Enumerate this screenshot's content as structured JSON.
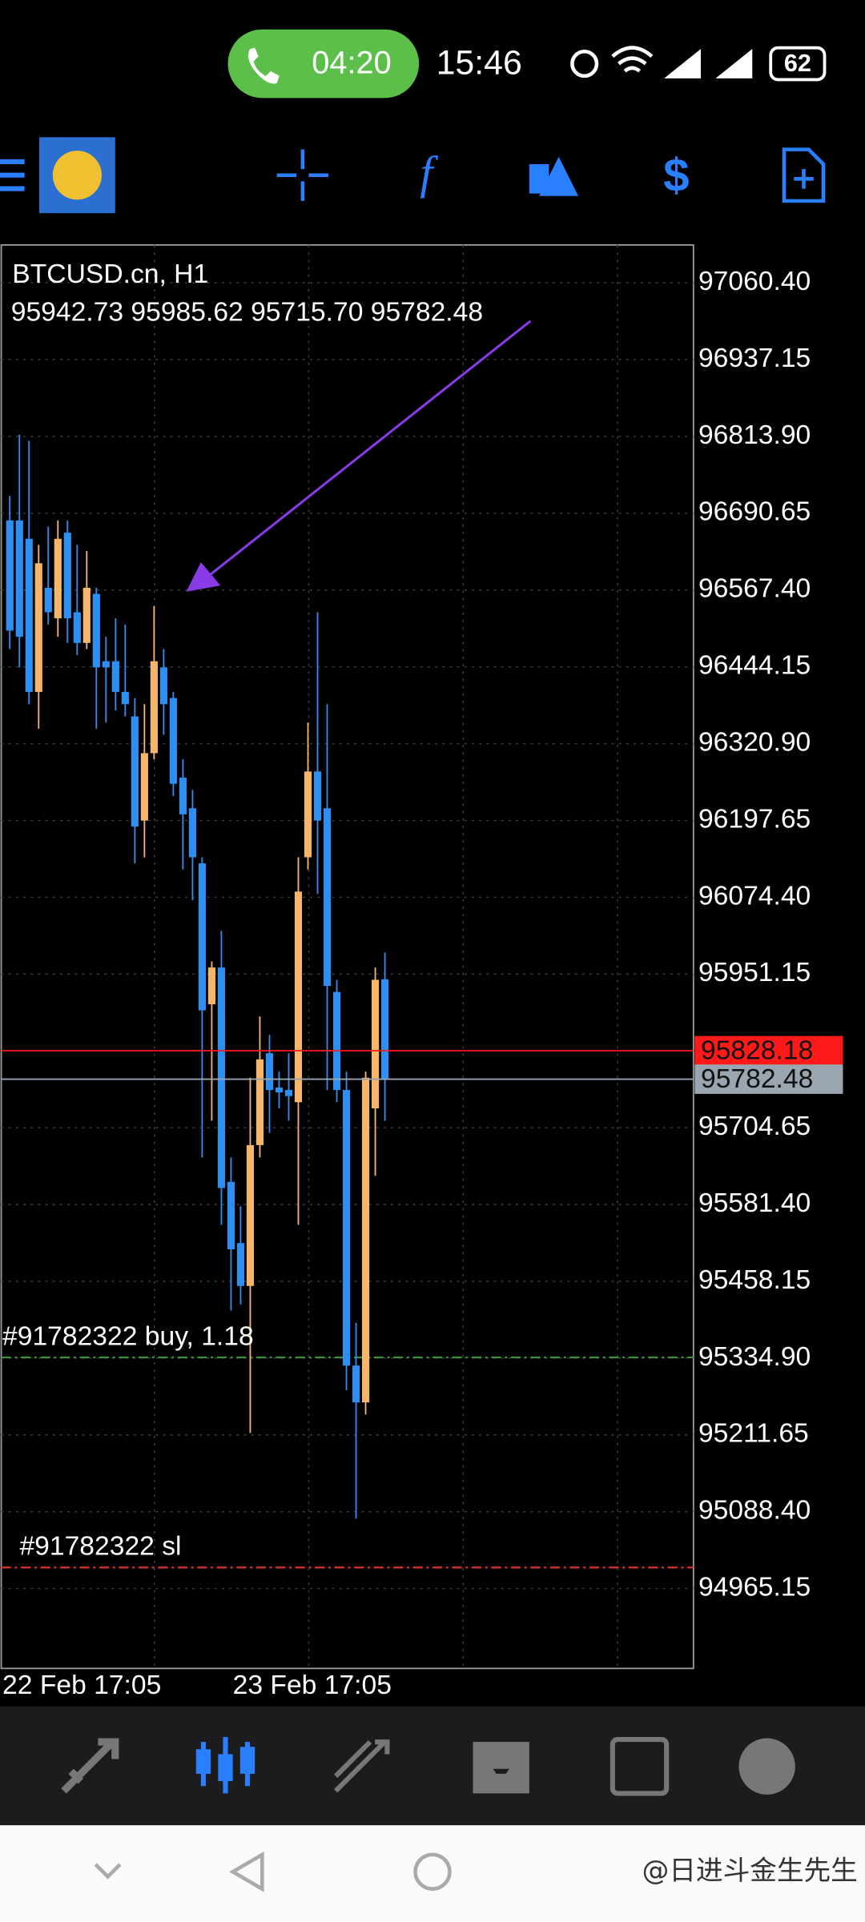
{
  "status": {
    "call_timer": "04:20",
    "time": "15:46",
    "battery": "62"
  },
  "chart_data": {
    "type": "candlestick",
    "title": "BTCUSD.cn, H1",
    "quote": "95942.73 95985.62 95715.70 95782.48",
    "bull_color": "#f5b56a",
    "bear_color": "#2f8ff0",
    "grid": true,
    "ylim": [
      94837,
      97121
    ],
    "yticks": [
      {
        "value": 97060.4,
        "label": "97060.40"
      },
      96937.15,
      {
        "value": 96813.9,
        "label": "96813.90"
      },
      96690.65,
      {
        "value": 96567.4,
        "label": "96567.40"
      },
      96444.15,
      {
        "value": 96320.9,
        "label": "96320.90"
      },
      96197.65,
      {
        "value": 96074.4,
        "label": "96074.40"
      },
      95951.15,
      95704.65,
      {
        "value": 95581.4,
        "label": "95581.40"
      },
      95458.15,
      {
        "value": 95334.9,
        "label": "95334.90"
      },
      95211.65,
      {
        "value": 95088.4,
        "label": "95088.40"
      },
      94965.15
    ],
    "xtick_labels": [
      "22 Feb 17:05",
      "23 Feb 17:05"
    ],
    "open": [
      96679.1,
      96679.1,
      96649.6,
      96403.9,
      96571.0,
      96521.9,
      96659.4,
      96531.7,
      96482.5,
      96561.2,
      96453.1,
      96453.1,
      96403.9,
      96364.6,
      96197.5,
      96305.6,
      96443.2,
      96394.1,
      96266.3,
      96217.2,
      96128.8,
      95902.7,
      95961.7,
      95617.7,
      95519.5,
      95450.7,
      95676.7,
      95824.1,
      95769.1,
      95765.1,
      95745.5,
      96138.6,
      96276.2,
      96217.2,
      95922.4,
      95765.1,
      95322.9,
      95263.9,
      95735.7,
      95942.73
    ],
    "high": [
      96718.4,
      96816.7,
      96806.9,
      96639.8,
      96669.3,
      96679.1,
      96679.1,
      96639.8,
      96630.0,
      96571.0,
      96492.4,
      96521.9,
      96512.0,
      96394.1,
      96384.3,
      96541.5,
      96472.7,
      96403.9,
      96295.8,
      96246.7,
      96138.6,
      95971.5,
      96020.7,
      95657.0,
      95578.4,
      95784.8,
      95883.1,
      95853.6,
      95794.6,
      95824.1,
      96138.6,
      96354.8,
      96531.7,
      96384.3,
      95942.0,
      95794.6,
      95391.7,
      95794.6,
      95961.7,
      95985.62
    ],
    "low": [
      96472.7,
      96443.2,
      96384.3,
      96345.0,
      96512.0,
      96492.4,
      96482.5,
      96462.9,
      96472.7,
      96345.0,
      96354.8,
      96374.4,
      96364.6,
      96128.8,
      96138.6,
      96295.8,
      96335.1,
      96236.9,
      96118.9,
      96069.8,
      95657.0,
      95716.0,
      95548.9,
      95411.3,
      95421.2,
      95214.8,
      95657.0,
      95696.3,
      95735.7,
      95716.0,
      95548.9,
      96118.9,
      96079.6,
      95765.1,
      95745.5,
      95283.6,
      95077.2,
      95244.3,
      95627.5,
      95715.7
    ],
    "close": [
      96502.2,
      96492.4,
      96403.9,
      96610.3,
      96531.7,
      96649.6,
      96521.9,
      96482.5,
      96571.0,
      96443.2,
      96443.2,
      96403.9,
      96384.3,
      96187.7,
      96305.6,
      96453.1,
      96384.3,
      96256.5,
      96207.4,
      96138.6,
      95892.9,
      95961.7,
      95607.9,
      95509.6,
      95450.7,
      95676.7,
      95814.3,
      95765.1,
      95761.2,
      95755.3,
      96083.5,
      96276.2,
      96197.5,
      95932.2,
      95765.1,
      95322.9,
      95263.9,
      95784.8,
      95942.0,
      95782.48
    ],
    "price_lines": [
      {
        "value": 95828.18,
        "color": "#ff1a1a"
      },
      {
        "value": 95782.48,
        "color": "#9aa5b0"
      }
    ],
    "order_lines": [
      {
        "label": "#91782322 buy, 1.18",
        "value": 95336,
        "color": "#3f8f3f"
      },
      {
        "label": "#91782322 sl",
        "value": 94999,
        "color": "#d03030"
      }
    ]
  },
  "watermark": "@日进斗金生先生"
}
